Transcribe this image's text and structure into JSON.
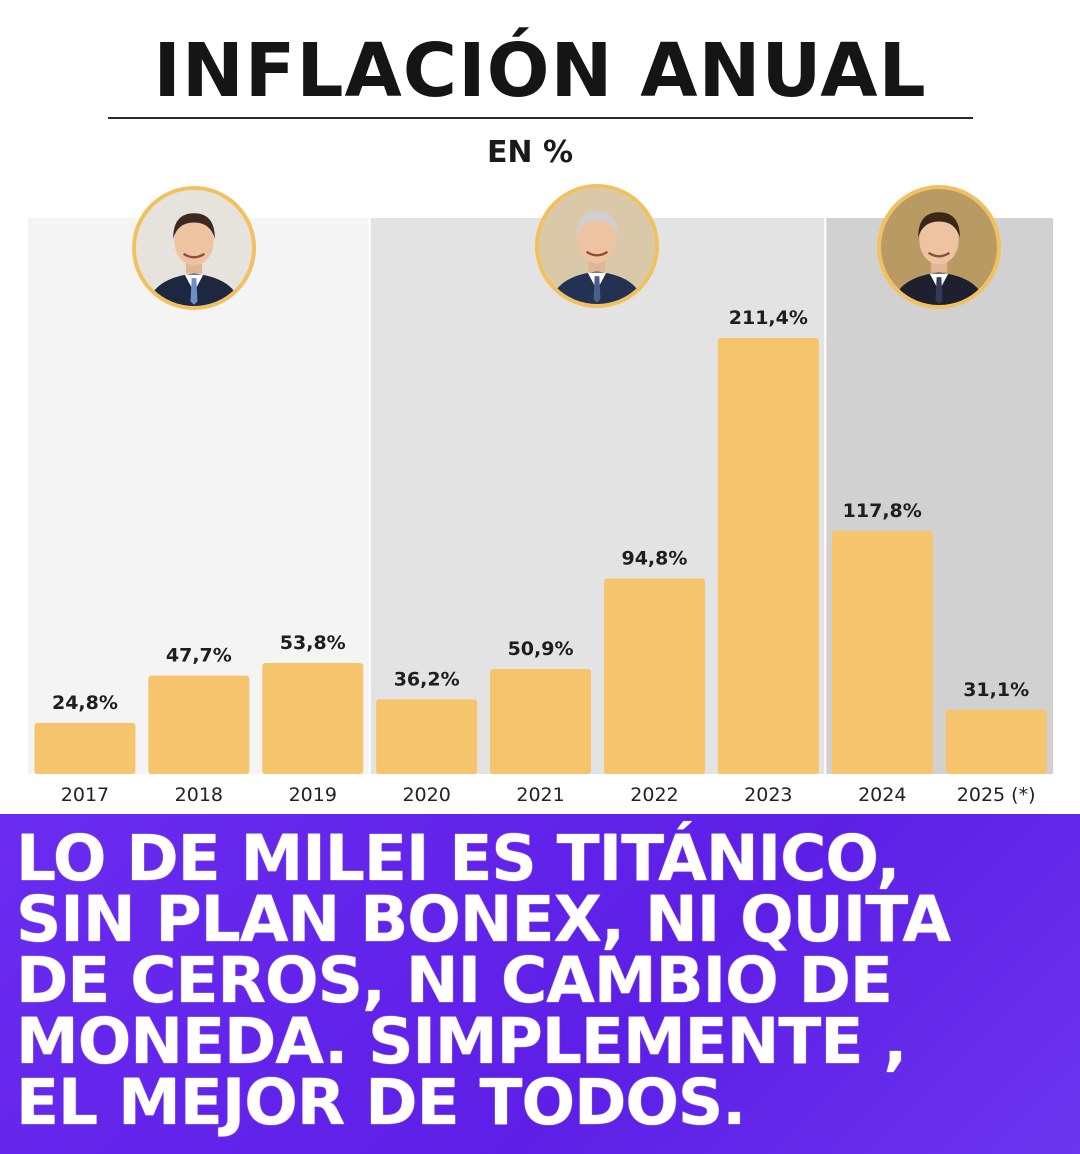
{
  "header": {
    "title": "INFLACIÓN ANUAL",
    "subtitle": "EN %"
  },
  "chart_data": {
    "type": "bar",
    "title": "INFLACIÓN ANUAL",
    "subtitle": "EN %",
    "categories": [
      "2017",
      "2018",
      "2019",
      "2020",
      "2021",
      "2022",
      "2023",
      "2024",
      "2025 (*)"
    ],
    "values": [
      24.8,
      47.7,
      53.8,
      36.2,
      50.9,
      94.8,
      211.4,
      117.8,
      31.1
    ],
    "labels": [
      "24,8%",
      "47,7%",
      "53,8%",
      "36,2%",
      "50,9%",
      "94,8%",
      "211,4%",
      "117,8%",
      "31,1%"
    ],
    "xlabel": "",
    "ylabel": "",
    "ylim": [
      0,
      211.4
    ],
    "grid": false,
    "bar_color": "#f5c46c",
    "periods": [
      {
        "name": "macri",
        "from": 0,
        "to": 2,
        "color": "#f4f4f4"
      },
      {
        "name": "fernandez",
        "from": 3,
        "to": 6,
        "color": "#e3e3e3"
      },
      {
        "name": "milei",
        "from": 7,
        "to": 8,
        "color": "#d1d1d1"
      }
    ]
  },
  "avatars": [
    {
      "name": "macri-avatar",
      "suit": "#1d2740",
      "tie": "#6c8fc7",
      "hair": "#3a2a22",
      "bg": "#e6e2dc"
    },
    {
      "name": "fernandez-avatar",
      "suit": "#233153",
      "tie": "#4a5f8a",
      "hair": "#cfcfcf",
      "bg": "#d9c9a8"
    },
    {
      "name": "milei-avatar",
      "suit": "#1e2030",
      "tie": "#333a55",
      "hair": "#3b2716",
      "bg": "#b89a62"
    }
  ],
  "banner": {
    "lines": [
      "LO DE MILEI ES TITÁNICO,",
      "SIN PLAN BONEX, NI QUITA",
      "DE CEROS, NI CAMBIO DE",
      "MONEDA. SIMPLEMENTE ,",
      "EL MEJOR DE TODOS."
    ],
    "background": "#6228ee"
  }
}
